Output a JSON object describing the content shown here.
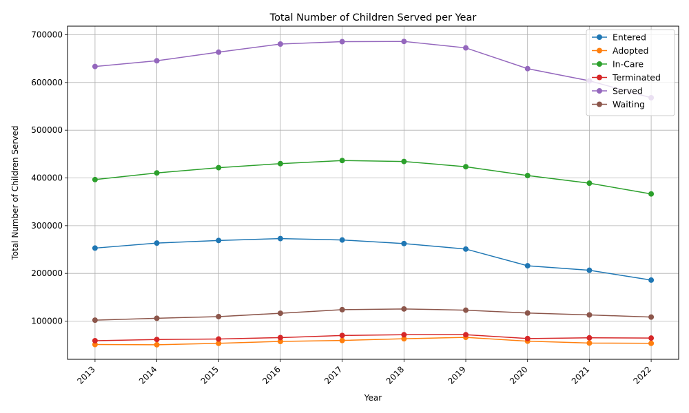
{
  "chart_data": {
    "type": "line",
    "title": "Total Number of Children Served per Year",
    "xlabel": "Year",
    "ylabel": "Total Number of Children Served",
    "categories": [
      "2013",
      "2014",
      "2015",
      "2016",
      "2017",
      "2018",
      "2019",
      "2020",
      "2021",
      "2022"
    ],
    "ylim": [
      20000,
      718000
    ],
    "yticks": [
      100000,
      200000,
      300000,
      400000,
      500000,
      600000,
      700000
    ],
    "grid": true,
    "legend_position": "top-right",
    "series": [
      {
        "name": "Entered",
        "color": "#1f77b4",
        "values": [
          253000,
          263500,
          269000,
          273000,
          270000,
          262500,
          251000,
          216000,
          206500,
          186000
        ]
      },
      {
        "name": "Adopted",
        "color": "#ff7f0e",
        "values": [
          51000,
          50500,
          53500,
          57500,
          59500,
          63000,
          66000,
          58000,
          54000,
          53500
        ]
      },
      {
        "name": "In-Care",
        "color": "#2ca02c",
        "values": [
          396500,
          410500,
          421500,
          430000,
          436500,
          434500,
          423500,
          405000,
          389000,
          366500
        ]
      },
      {
        "name": "Terminated",
        "color": "#d62728",
        "values": [
          59000,
          61500,
          62500,
          65500,
          70000,
          71500,
          71500,
          63500,
          65000,
          64500
        ]
      },
      {
        "name": "Served",
        "color": "#9467bd",
        "values": [
          633500,
          645500,
          663500,
          680500,
          685500,
          686000,
          672500,
          629000,
          603500,
          568000
        ]
      },
      {
        "name": "Waiting",
        "color": "#8c564b",
        "values": [
          102000,
          106000,
          109500,
          116500,
          124000,
          125500,
          123000,
          117000,
          113000,
          108500
        ]
      }
    ]
  }
}
